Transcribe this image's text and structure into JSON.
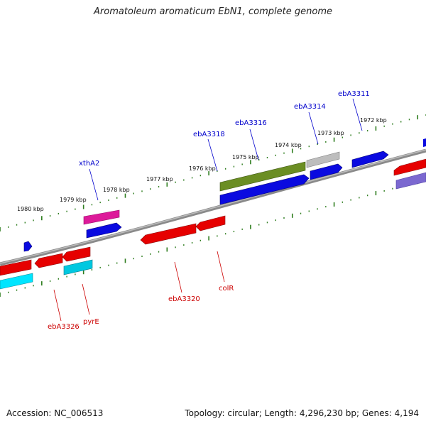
{
  "title": "Aromatoleum aromaticum EbN1, complete genome",
  "footer": {
    "accession": "Accession: NC_006513",
    "genome_info": "Topology: circular; Length: 4,296,230 bp; Genes: 4,194"
  },
  "colors": {
    "backbone": "#8a8a8a",
    "ruler_ticks": "#2e7d1e",
    "label_forward": "#0000cc",
    "label_reverse": "#cc0000"
  },
  "ruler_labels": [
    "1980 kbp",
    "1979 kbp",
    "1978 kbp",
    "1977 kbp",
    "1976 kbp",
    "1975 kbp",
    "1974 kbp",
    "1973 kbp",
    "1972 kbp"
  ],
  "forward_gene_labels": [
    "xthA2",
    "ebA3318",
    "ebA3316",
    "ebA3314",
    "ebA3311"
  ],
  "reverse_gene_labels": [
    "ebA3326",
    "pyrE",
    "ebA3320",
    "colR"
  ],
  "feature_colors": [
    "#dd1a9a",
    "#0a0ae0",
    "#6b8e23",
    "#bdbdbd",
    "#e60000",
    "#00c8e0",
    "#7b68d0"
  ]
}
